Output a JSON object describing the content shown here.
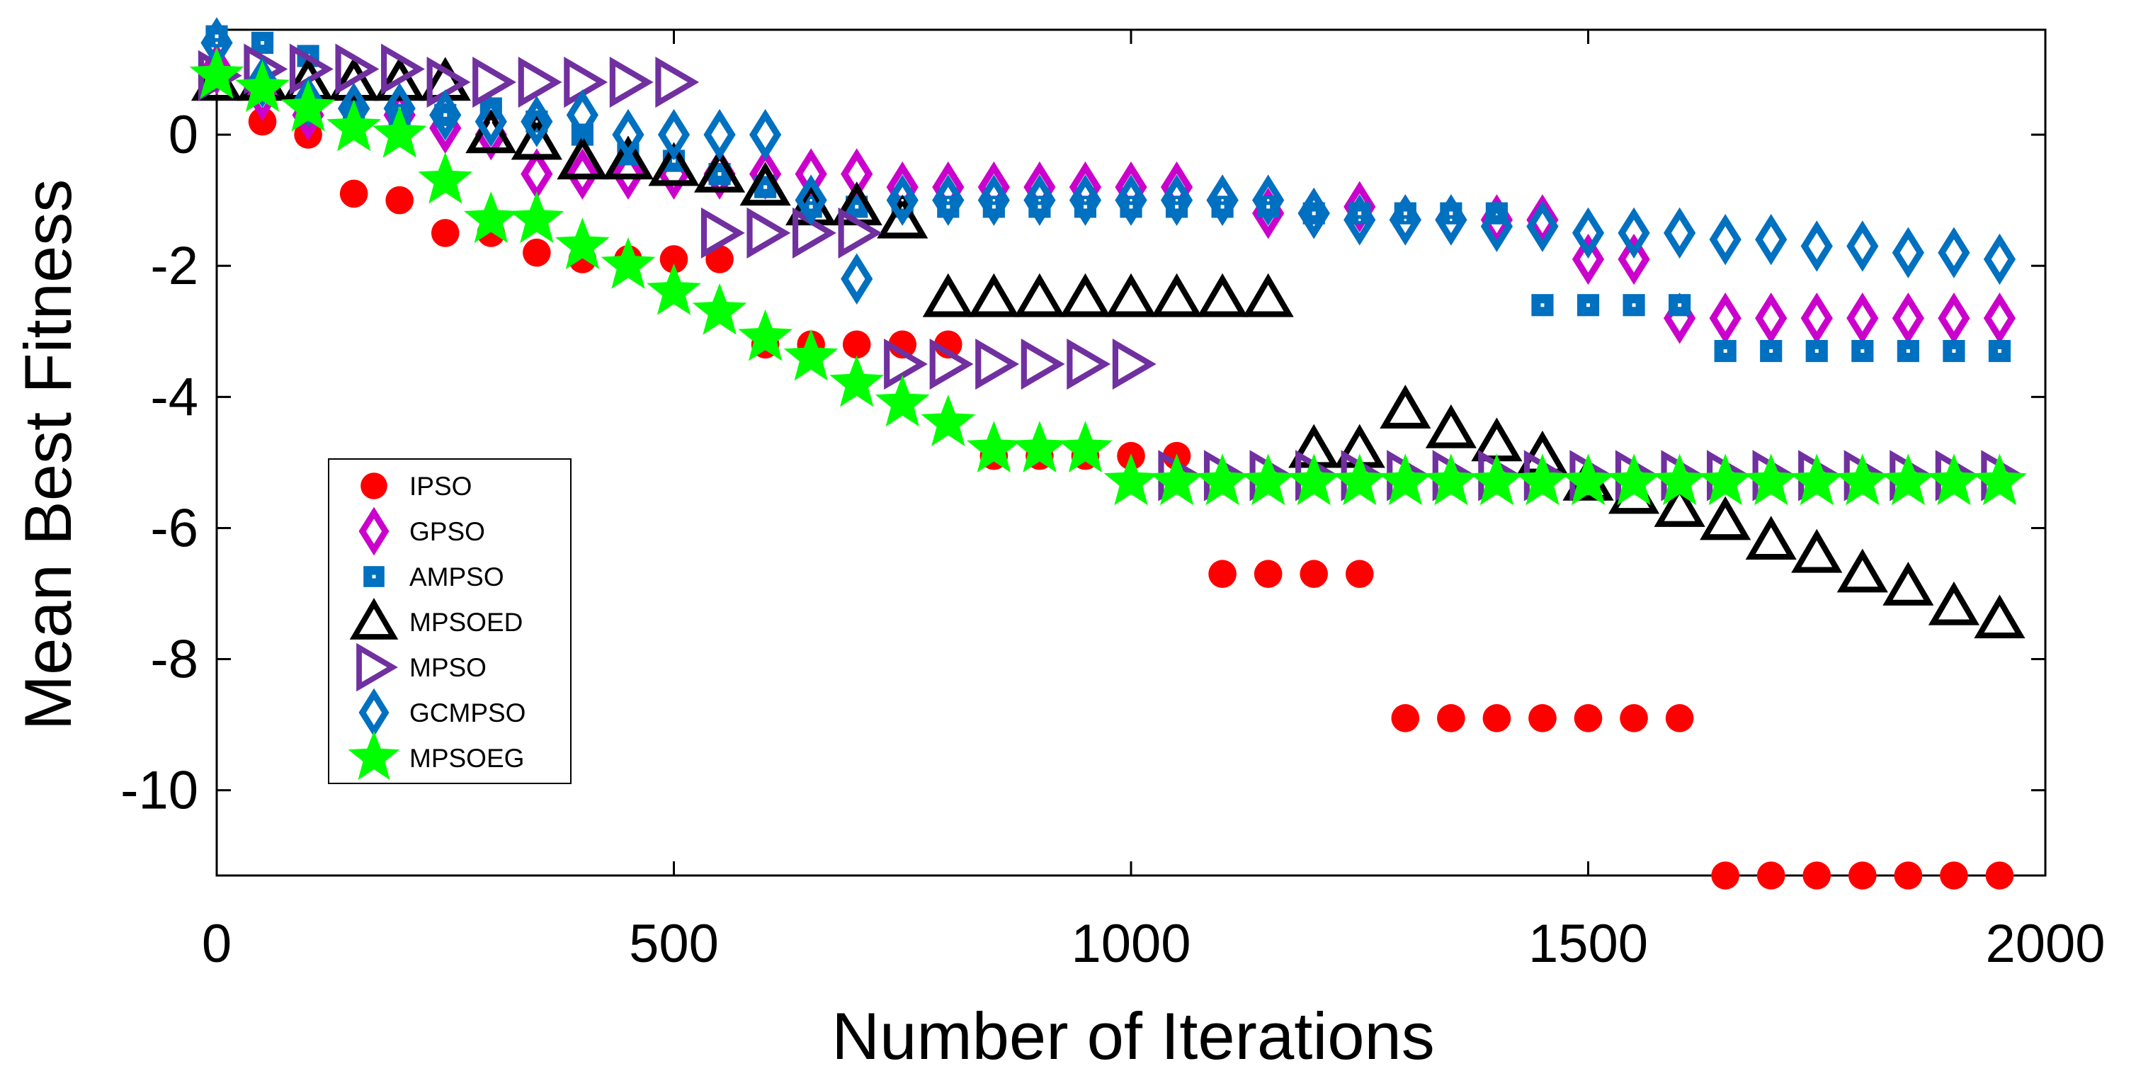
{
  "chart_data": {
    "type": "scatter",
    "title": "",
    "xlabel": "Number of Iterations",
    "ylabel": "Mean Best Fitness",
    "xlim": [
      0,
      2000
    ],
    "ylim": [
      -11.3,
      1.6
    ],
    "xticks": [
      0,
      500,
      1000,
      1500,
      2000
    ],
    "yticks": [
      0,
      -2,
      -4,
      -6,
      -8,
      -10
    ],
    "xtick_labels": [
      "0",
      "500",
      "1000",
      "1500",
      "2000"
    ],
    "ytick_labels": [
      "0",
      "-2",
      "-4",
      "-6",
      "-8",
      "-10"
    ],
    "grid": false,
    "legend_position": "center-left",
    "series": [
      {
        "name": "IPSO",
        "marker": "circle",
        "color": "#ff0000",
        "x": [
          0,
          50,
          100,
          150,
          200,
          250,
          300,
          350,
          400,
          450,
          500,
          550,
          600,
          650,
          700,
          750,
          800,
          850,
          900,
          950,
          1000,
          1050,
          1100,
          1150,
          1200,
          1250,
          1300,
          1350,
          1400,
          1450,
          1500,
          1550,
          1600,
          1650,
          1700,
          1750,
          1800,
          1850,
          1900,
          1950
        ],
        "y": [
          0.9,
          0.2,
          0.0,
          -0.9,
          -1.0,
          -1.5,
          -1.5,
          -1.8,
          -1.9,
          -1.9,
          -1.9,
          -1.9,
          -3.2,
          -3.2,
          -3.2,
          -3.2,
          -3.2,
          -4.9,
          -4.9,
          -4.9,
          -4.9,
          -4.9,
          -6.7,
          -6.7,
          -6.7,
          -6.7,
          -8.9,
          -8.9,
          -8.9,
          -8.9,
          -8.9,
          -8.9,
          -8.9,
          -11.3,
          -11.3,
          -11.3,
          -11.3,
          -11.3,
          -11.3,
          -11.3
        ]
      },
      {
        "name": "GPSO",
        "marker": "diamond",
        "color": "#cc00cc",
        "x": [
          0,
          50,
          100,
          150,
          200,
          250,
          300,
          350,
          400,
          450,
          500,
          550,
          600,
          650,
          700,
          750,
          800,
          850,
          900,
          950,
          1000,
          1050,
          1100,
          1150,
          1200,
          1250,
          1300,
          1350,
          1400,
          1450,
          1500,
          1550,
          1600,
          1650,
          1700,
          1750,
          1800,
          1850,
          1900,
          1950
        ],
        "y": [
          1.0,
          0.6,
          0.3,
          0.4,
          0.3,
          0.1,
          0.0,
          -0.6,
          -0.6,
          -0.6,
          -0.6,
          -0.6,
          -0.6,
          -0.6,
          -0.6,
          -0.8,
          -0.8,
          -0.8,
          -0.8,
          -0.8,
          -0.8,
          -0.8,
          -1.0,
          -1.2,
          -1.2,
          -1.1,
          -1.3,
          -1.3,
          -1.3,
          -1.3,
          -1.9,
          -1.9,
          -2.8,
          -2.8,
          -2.8,
          -2.8,
          -2.8,
          -2.8,
          -2.8,
          -2.8
        ]
      },
      {
        "name": "AMPSO",
        "marker": "square",
        "color": "#0070c0",
        "x": [
          0,
          50,
          100,
          150,
          200,
          250,
          300,
          350,
          400,
          450,
          500,
          550,
          600,
          650,
          700,
          750,
          800,
          850,
          900,
          950,
          1000,
          1050,
          1100,
          1150,
          1200,
          1250,
          1300,
          1350,
          1400,
          1450,
          1500,
          1550,
          1600,
          1650,
          1700,
          1750,
          1800,
          1850,
          1900,
          1950
        ],
        "y": [
          1.5,
          1.4,
          1.2,
          0.4,
          0.3,
          0.3,
          0.4,
          0.2,
          0.0,
          -0.3,
          -0.4,
          -0.6,
          -0.8,
          -1.1,
          -1.1,
          -1.1,
          -1.1,
          -1.1,
          -1.1,
          -1.1,
          -1.1,
          -1.1,
          -1.1,
          -1.1,
          -1.2,
          -1.2,
          -1.2,
          -1.2,
          -1.2,
          -2.6,
          -2.6,
          -2.6,
          -2.6,
          -3.3,
          -3.3,
          -3.3,
          -3.3,
          -3.3,
          -3.3,
          -3.3
        ]
      },
      {
        "name": "MPSOED",
        "marker": "triangle-up",
        "color": "#000000",
        "x": [
          0,
          50,
          100,
          150,
          200,
          250,
          300,
          350,
          400,
          450,
          500,
          550,
          600,
          650,
          700,
          750,
          800,
          850,
          900,
          950,
          1000,
          1050,
          1100,
          1150,
          1200,
          1250,
          1300,
          1350,
          1400,
          1450,
          1500,
          1550,
          1600,
          1650,
          1700,
          1750,
          1800,
          1850,
          1900,
          1950
        ],
        "y": [
          0.8,
          0.8,
          0.8,
          0.8,
          0.8,
          0.8,
          0.0,
          -0.1,
          -0.4,
          -0.4,
          -0.5,
          -0.6,
          -0.8,
          -1.1,
          -1.1,
          -1.3,
          -2.5,
          -2.5,
          -2.5,
          -2.5,
          -2.5,
          -2.5,
          -2.5,
          -2.5,
          -4.8,
          -4.8,
          -4.2,
          -4.5,
          -4.7,
          -4.9,
          -5.3,
          -5.5,
          -5.7,
          -5.9,
          -6.2,
          -6.4,
          -6.7,
          -6.9,
          -7.2,
          -7.4
        ]
      },
      {
        "name": "MPSO",
        "marker": "triangle-right",
        "color": "#7030a0",
        "x": [
          0,
          50,
          100,
          150,
          200,
          250,
          300,
          350,
          400,
          450,
          500,
          550,
          600,
          650,
          700,
          750,
          800,
          850,
          900,
          950,
          1000,
          1050,
          1100,
          1150,
          1200,
          1250,
          1300,
          1350,
          1400,
          1450,
          1500,
          1550,
          1600,
          1650,
          1700,
          1750,
          1800,
          1850,
          1900,
          1950
        ],
        "y": [
          0.9,
          1.0,
          1.0,
          1.0,
          1.0,
          0.8,
          0.8,
          0.8,
          0.8,
          0.8,
          0.8,
          -1.5,
          -1.5,
          -1.5,
          -1.5,
          -3.5,
          -3.5,
          -3.5,
          -3.5,
          -3.5,
          -3.5,
          -5.2,
          -5.2,
          -5.2,
          -5.2,
          -5.2,
          -5.2,
          -5.2,
          -5.2,
          -5.2,
          -5.2,
          -5.2,
          -5.2,
          -5.2,
          -5.2,
          -5.2,
          -5.2,
          -5.2,
          -5.2,
          -5.2
        ]
      },
      {
        "name": "GCMPSO",
        "marker": "diamond",
        "color": "#0070c0",
        "x": [
          0,
          50,
          100,
          150,
          200,
          250,
          300,
          350,
          400,
          450,
          500,
          550,
          600,
          650,
          700,
          750,
          800,
          850,
          900,
          950,
          1000,
          1050,
          1100,
          1150,
          1200,
          1250,
          1300,
          1350,
          1400,
          1450,
          1500,
          1550,
          1600,
          1650,
          1700,
          1750,
          1800,
          1850,
          1900,
          1950
        ],
        "y": [
          1.4,
          0.8,
          0.5,
          0.4,
          0.4,
          0.3,
          0.2,
          0.2,
          0.3,
          0.0,
          0.0,
          0.0,
          0.0,
          -1.0,
          -2.2,
          -1.0,
          -1.0,
          -1.0,
          -1.0,
          -1.0,
          -1.0,
          -1.0,
          -1.0,
          -1.0,
          -1.2,
          -1.3,
          -1.3,
          -1.3,
          -1.4,
          -1.4,
          -1.5,
          -1.5,
          -1.5,
          -1.6,
          -1.6,
          -1.7,
          -1.7,
          -1.8,
          -1.8,
          -1.9
        ]
      },
      {
        "name": "MPSOEG",
        "marker": "star",
        "color": "#00ff00",
        "x": [
          0,
          50,
          100,
          150,
          200,
          250,
          300,
          350,
          400,
          450,
          500,
          550,
          600,
          650,
          700,
          750,
          800,
          850,
          900,
          950,
          1000,
          1050,
          1100,
          1150,
          1200,
          1250,
          1300,
          1350,
          1400,
          1450,
          1500,
          1550,
          1600,
          1650,
          1700,
          1750,
          1800,
          1850,
          1900,
          1950
        ],
        "y": [
          0.9,
          0.7,
          0.4,
          0.1,
          0.0,
          -0.7,
          -1.3,
          -1.3,
          -1.7,
          -2.0,
          -2.4,
          -2.7,
          -3.1,
          -3.4,
          -3.8,
          -4.1,
          -4.4,
          -4.8,
          -4.8,
          -4.8,
          -5.3,
          -5.3,
          -5.3,
          -5.3,
          -5.3,
          -5.3,
          -5.3,
          -5.3,
          -5.3,
          -5.3,
          -5.3,
          -5.3,
          -5.3,
          -5.3,
          -5.3,
          -5.3,
          -5.3,
          -5.3,
          -5.3,
          -5.3
        ]
      }
    ]
  }
}
